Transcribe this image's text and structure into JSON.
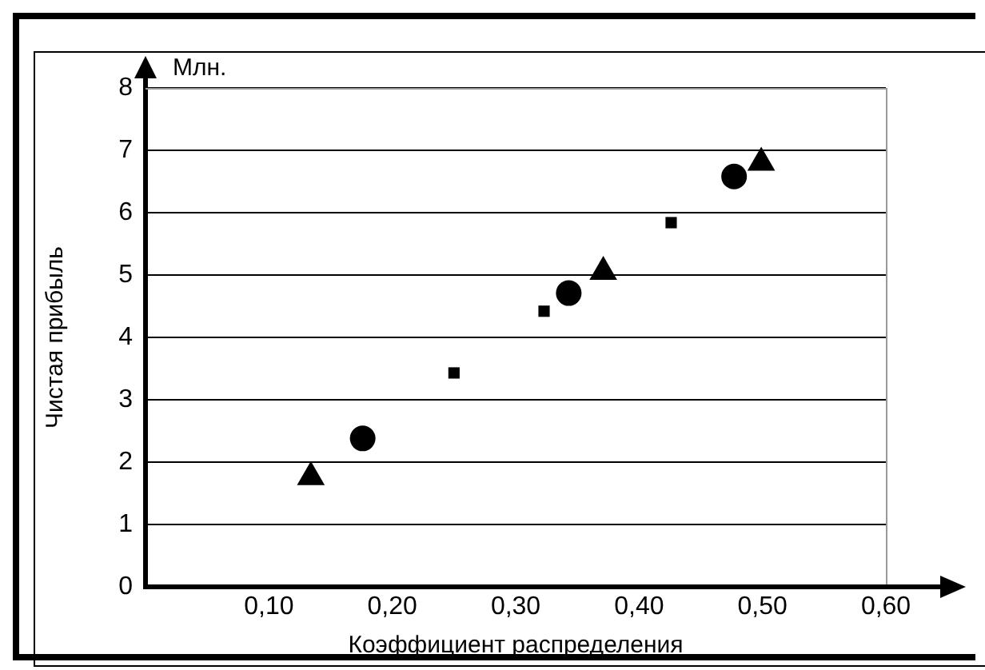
{
  "chart_data": {
    "type": "scatter",
    "xlabel": "Коэффициент распределения",
    "ylabel": "Чистая прибыль",
    "annotations": [
      "Млн."
    ],
    "xlim": [
      0,
      0.6
    ],
    "ylim": [
      0,
      8
    ],
    "xticks": [
      {
        "value": 0.1,
        "label": "0,10"
      },
      {
        "value": 0.2,
        "label": "0,20"
      },
      {
        "value": 0.3,
        "label": "0,30"
      },
      {
        "value": 0.4,
        "label": "0,40"
      },
      {
        "value": 0.5,
        "label": "0,50"
      },
      {
        "value": 0.6,
        "label": "0,60"
      }
    ],
    "yticks": [
      0,
      1,
      2,
      3,
      4,
      5,
      6,
      7,
      8
    ],
    "grid": "y",
    "legend": false,
    "series": [
      {
        "color": "#000000",
        "marker": "triangle",
        "x": [
          0.134,
          0.371,
          0.499
        ],
        "values": [
          1.76,
          5.05,
          6.8
        ]
      },
      {
        "color": "#000000",
        "marker": "circle",
        "x": [
          0.176,
          0.343,
          0.477
        ],
        "values": [
          2.38,
          4.71,
          6.58
        ]
      },
      {
        "color": "#000000",
        "marker": "square",
        "x": [
          0.25,
          0.323,
          0.426
        ],
        "values": [
          3.43,
          4.42,
          5.84
        ]
      }
    ]
  }
}
